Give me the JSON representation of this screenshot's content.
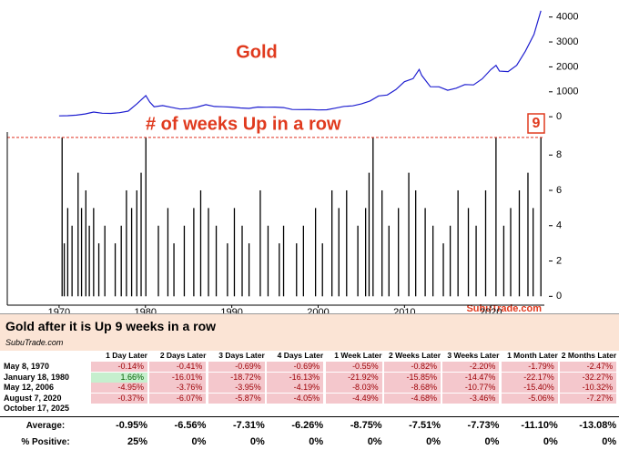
{
  "chart_data": [
    {
      "type": "line",
      "title": "Gold",
      "color": "#1f1fd0",
      "x": [
        1970,
        1971,
        1972,
        1973,
        1974,
        1975,
        1976,
        1977,
        1978,
        1979,
        1980.05,
        1980.5,
        1981,
        1982,
        1983,
        1984,
        1985,
        1986,
        1987,
        1988,
        1989,
        1990,
        1991,
        1992,
        1993,
        1994,
        1995,
        1996,
        1997,
        1998,
        1999,
        2000,
        2001,
        2002,
        2003,
        2004,
        2005,
        2006,
        2007,
        2008,
        2009,
        2010,
        2011,
        2011.7,
        2012,
        2013,
        2014,
        2015,
        2016,
        2017,
        2018,
        2019,
        2020,
        2020.6,
        2021,
        2022,
        2023,
        2024,
        2025,
        2025.8
      ],
      "values": [
        35,
        43,
        64,
        112,
        187,
        140,
        134,
        164,
        226,
        512,
        850,
        590,
        400,
        447,
        380,
        309,
        327,
        390,
        484,
        410,
        401,
        386,
        353,
        333,
        391,
        383,
        387,
        369,
        290,
        287,
        290,
        272,
        279,
        347,
        416,
        438,
        513,
        632,
        834,
        870,
        1088,
        1405,
        1531,
        1900,
        1657,
        1204,
        1199,
        1060,
        1146,
        1291,
        1279,
        1517,
        1890,
        2060,
        1829,
        1812,
        2062,
        2625,
        3300,
        4250
      ],
      "xlim": [
        1964,
        2026.2
      ],
      "ylim": [
        -250,
        4500
      ],
      "yticks": [
        0,
        1000,
        2000,
        3000,
        4000
      ]
    },
    {
      "type": "bar",
      "title": "# of weeks Up in a row",
      "color": "#000000",
      "annotation": "9",
      "reference_line": 9,
      "reference_color": "#e03020",
      "source": "SubuTrade.com",
      "x": [
        1970.35,
        1970.6,
        1971.0,
        1971.5,
        1972.2,
        1972.6,
        1973.1,
        1973.5,
        1974.0,
        1974.6,
        1975.3,
        1976.5,
        1977.2,
        1977.8,
        1978.4,
        1979.0,
        1979.5,
        1980.05,
        1981.5,
        1982.6,
        1983.3,
        1984.5,
        1985.6,
        1986.4,
        1987.3,
        1988.2,
        1989.5,
        1990.3,
        1991.2,
        1992.0,
        1993.3,
        1994.2,
        1995.5,
        1996.0,
        1997.5,
        1998.3,
        1999.7,
        2000.5,
        2001.6,
        2002.4,
        2003.3,
        2004.6,
        2005.5,
        2005.9,
        2006.36,
        2007.4,
        2008.2,
        2009.3,
        2010.5,
        2011.3,
        2012.4,
        2013.3,
        2014.5,
        2015.3,
        2016.2,
        2017.4,
        2018.3,
        2019.4,
        2020.6,
        2021.5,
        2022.3,
        2023.3,
        2024.3,
        2024.9,
        2025.8
      ],
      "values": [
        9,
        3,
        5,
        4,
        7,
        5,
        6,
        4,
        5,
        3,
        4,
        3,
        4,
        6,
        5,
        6,
        7,
        9,
        4,
        5,
        3,
        4,
        5,
        6,
        5,
        4,
        3,
        5,
        4,
        3,
        6,
        4,
        3,
        4,
        3,
        4,
        5,
        3,
        6,
        5,
        6,
        4,
        5,
        7,
        9,
        6,
        4,
        5,
        7,
        6,
        5,
        4,
        3,
        4,
        6,
        5,
        4,
        6,
        9,
        4,
        5,
        6,
        7,
        5,
        9
      ],
      "xlim": [
        1964,
        2026.2
      ],
      "ylim": [
        -0.5,
        9.3
      ],
      "yticks": [
        0,
        2,
        4,
        6,
        8
      ],
      "xticks": [
        1970,
        1980,
        1990,
        2000,
        2010,
        2020
      ]
    }
  ],
  "table": {
    "title": "Gold after it is Up 9 weeks in a row",
    "source": "SubuTrade.com",
    "columns": [
      "1 Day Later",
      "2 Days Later",
      "3 Days Later",
      "4 Days Later",
      "1 Week Later",
      "2 Weeks Later",
      "3 Weeks Later",
      "1 Month Later",
      "2 Months Later"
    ],
    "rows": [
      {
        "date": "May 8, 1970",
        "values": [
          "-0.14%",
          "-0.41%",
          "-0.69%",
          "-0.69%",
          "-0.55%",
          "-0.82%",
          "-2.20%",
          "-1.79%",
          "-2.47%"
        ]
      },
      {
        "date": "January 18, 1980",
        "values": [
          "1.66%",
          "-16.01%",
          "-18.72%",
          "-16.13%",
          "-21.92%",
          "-15.85%",
          "-14.47%",
          "-22.17%",
          "-32.27%"
        ]
      },
      {
        "date": "May 12, 2006",
        "values": [
          "-4.95%",
          "-3.76%",
          "-3.95%",
          "-4.19%",
          "-8.03%",
          "-8.68%",
          "-10.77%",
          "-15.40%",
          "-10.32%"
        ]
      },
      {
        "date": "August 7, 2020",
        "values": [
          "-0.37%",
          "-6.07%",
          "-5.87%",
          "-4.05%",
          "-4.49%",
          "-4.68%",
          "-3.46%",
          "-5.06%",
          "-7.27%"
        ]
      },
      {
        "date": "October 17, 2025"
      }
    ],
    "summary": [
      {
        "label": "Average:",
        "values": [
          "-0.95%",
          "-6.56%",
          "-7.31%",
          "-6.26%",
          "-8.75%",
          "-7.51%",
          "-7.73%",
          "-11.10%",
          "-13.08%"
        ]
      },
      {
        "label": "% Positive:",
        "values": [
          "25%",
          "0%",
          "0%",
          "0%",
          "0%",
          "0%",
          "0%",
          "0%",
          "0%"
        ]
      }
    ]
  }
}
